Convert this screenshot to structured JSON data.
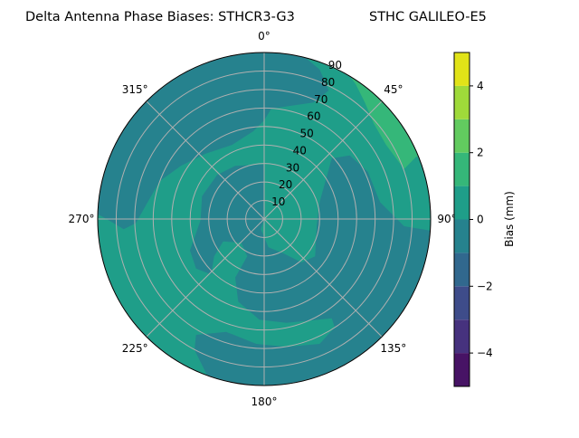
{
  "chart_data": {
    "type": "contour",
    "projection": "polar",
    "title_left": "Delta Antenna Phase Biases: STHCR3-G3",
    "title_right": "STHC GALILEO-E5",
    "theta_direction": "clockwise",
    "theta_zero": "north",
    "theta_ticks": [
      "0°",
      "45°",
      "90°",
      "135°",
      "180°",
      "225°",
      "270°",
      "315°"
    ],
    "theta_tick_values": [
      0,
      45,
      90,
      135,
      180,
      225,
      270,
      315
    ],
    "r_ticks": [
      "10",
      "20",
      "30",
      "40",
      "50",
      "60",
      "70",
      "80",
      "90"
    ],
    "r_tick_values": [
      10,
      20,
      30,
      40,
      50,
      60,
      70,
      80,
      90
    ],
    "rlim": [
      0,
      90
    ],
    "grid": true,
    "levels": [
      -5,
      -4,
      -3,
      -2,
      -1,
      0,
      1,
      2,
      3,
      4,
      5
    ],
    "level_colors": [
      "#471365",
      "#46327e",
      "#3e4c8a",
      "#31688e",
      "#26828e",
      "#1f9e89",
      "#35b779",
      "#62cb5f",
      "#9fda3a",
      "#e1e318"
    ],
    "regions": [
      {
        "band": [
          0,
          1
        ],
        "location": "background, ring at 30-60 on west and east-center"
      },
      {
        "band": [
          -1,
          0
        ],
        "location": "northwest and north up to ~70; center-left near zenith; south-east and south"
      },
      {
        "band": [
          -2,
          -1
        ],
        "location": "thin strip at north-northwest edge"
      },
      {
        "band": [
          1,
          2
        ],
        "location": "north-east near 45° at 70-90"
      }
    ],
    "colorbar": {
      "label": "Bias (mm)",
      "ticks": [
        "−4",
        "−2",
        "0",
        "2",
        "4"
      ],
      "tick_values": [
        -4,
        -2,
        0,
        2,
        4
      ],
      "range": [
        -5,
        5
      ]
    }
  }
}
